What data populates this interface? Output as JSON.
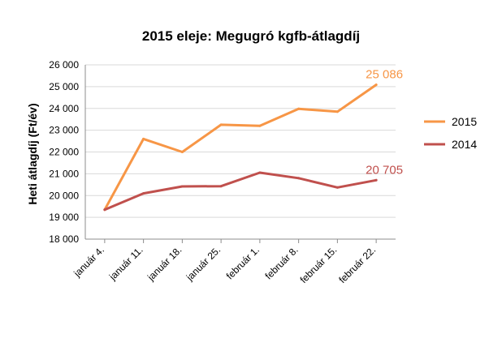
{
  "chart_data": {
    "type": "line",
    "title": "2015 eleje: Megugró kgfb-átlagdíj",
    "xlabel": "",
    "ylabel": "Heti átlagdíj (Ft/év)",
    "categories": [
      "január 4.",
      "január 11.",
      "január 18.",
      "január 25.",
      "február 1.",
      "február 8.",
      "február 15.",
      "február 22."
    ],
    "ylim": [
      18000,
      26000
    ],
    "yticks": [
      18000,
      19000,
      20000,
      21000,
      22000,
      23000,
      24000,
      25000,
      26000
    ],
    "ytick_labels": [
      "18 000",
      "19 000",
      "20 000",
      "21 000",
      "22 000",
      "23 000",
      "24 000",
      "25 000",
      "26 000"
    ],
    "grid": "horizontal",
    "legend_position": "right",
    "series": [
      {
        "name": "2015",
        "color": "#F79646",
        "values": [
          19350,
          22600,
          22000,
          23250,
          23200,
          23980,
          23850,
          25086
        ],
        "end_label": "25 086"
      },
      {
        "name": "2014",
        "color": "#C0504D",
        "values": [
          19350,
          20100,
          20420,
          20430,
          21050,
          20800,
          20370,
          20705
        ],
        "end_label": "20 705"
      }
    ]
  }
}
